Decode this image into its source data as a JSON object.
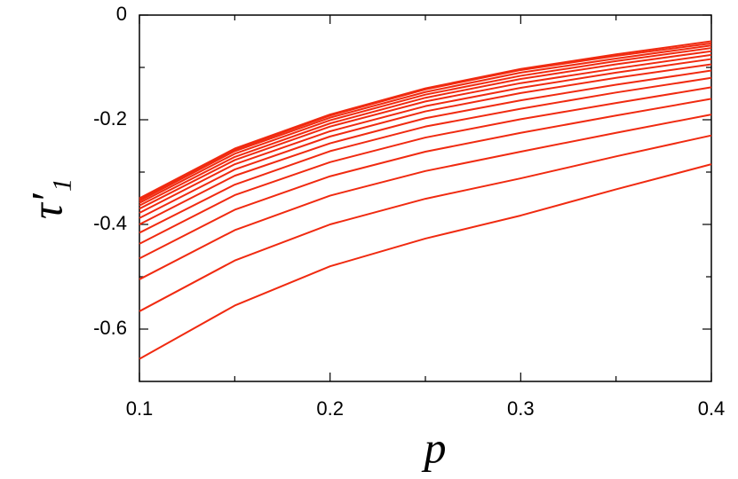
{
  "chart_data": {
    "type": "line",
    "xlabel": "p",
    "ylabel": "τ′₁",
    "x": [
      0.1,
      0.15,
      0.2,
      0.25,
      0.3,
      0.35,
      0.4
    ],
    "color": "#f02a10",
    "series": [
      {
        "values": [
          -0.657,
          -0.555,
          -0.48,
          -0.427,
          -0.383,
          -0.333,
          -0.285
        ]
      },
      {
        "values": [
          -0.566,
          -0.469,
          -0.4,
          -0.351,
          -0.312,
          -0.27,
          -0.23
        ]
      },
      {
        "values": [
          -0.505,
          -0.411,
          -0.345,
          -0.298,
          -0.261,
          -0.225,
          -0.19
        ]
      },
      {
        "values": [
          -0.465,
          -0.372,
          -0.308,
          -0.261,
          -0.225,
          -0.192,
          -0.16
        ]
      },
      {
        "values": [
          -0.437,
          -0.344,
          -0.281,
          -0.234,
          -0.199,
          -0.168,
          -0.138
        ]
      },
      {
        "values": [
          -0.416,
          -0.324,
          -0.26,
          -0.213,
          -0.179,
          -0.148,
          -0.12
        ]
      },
      {
        "values": [
          -0.4,
          -0.307,
          -0.245,
          -0.197,
          -0.163,
          -0.133,
          -0.106
        ]
      },
      {
        "values": [
          -0.388,
          -0.295,
          -0.232,
          -0.184,
          -0.149,
          -0.12,
          -0.094
        ]
      },
      {
        "values": [
          -0.378,
          -0.285,
          -0.222,
          -0.174,
          -0.139,
          -0.11,
          -0.084
        ]
      },
      {
        "values": [
          -0.37,
          -0.277,
          -0.213,
          -0.165,
          -0.13,
          -0.102,
          -0.076
        ]
      },
      {
        "values": [
          -0.364,
          -0.271,
          -0.207,
          -0.158,
          -0.122,
          -0.094,
          -0.069
        ]
      },
      {
        "values": [
          -0.359,
          -0.265,
          -0.201,
          -0.152,
          -0.116,
          -0.088,
          -0.063
        ]
      },
      {
        "values": [
          -0.355,
          -0.26,
          -0.196,
          -0.147,
          -0.11,
          -0.083,
          -0.058
        ]
      },
      {
        "values": [
          -0.352,
          -0.257,
          -0.192,
          -0.142,
          -0.105,
          -0.078,
          -0.054
        ]
      },
      {
        "values": [
          -0.35,
          -0.255,
          -0.19,
          -0.14,
          -0.103,
          -0.075,
          -0.05
        ]
      }
    ],
    "xlim": [
      0.1,
      0.4
    ],
    "xticks": [
      0.1,
      0.2,
      0.3,
      0.4
    ],
    "xminorticks": [
      0.15,
      0.25,
      0.35
    ],
    "ylim": [
      -0.7,
      0
    ],
    "yticks": [
      -0.6,
      -0.4,
      -0.2,
      0
    ],
    "yminorticks": [
      -0.5,
      -0.3,
      -0.1
    ]
  }
}
